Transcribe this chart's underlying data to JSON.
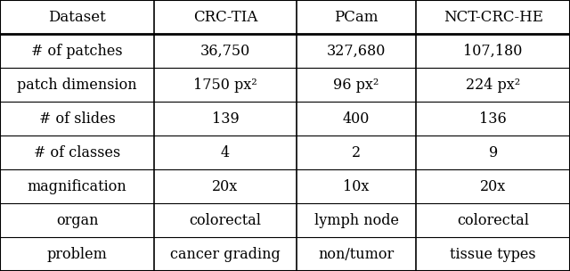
{
  "col_headers": [
    "Dataset",
    "CRC-TIA",
    "PCam",
    "NCT-CRC-HE"
  ],
  "row_labels": [
    "# of patches",
    "patch dimension",
    "# of slides",
    "# of classes",
    "magnification",
    "organ",
    "problem"
  ],
  "cell_data": [
    [
      "36,750",
      "327,680",
      "107,180"
    ],
    [
      "1750 px²",
      "96 px²",
      "224 px²"
    ],
    [
      "139",
      "400",
      "136"
    ],
    [
      "4",
      "2",
      "9"
    ],
    [
      "20x",
      "10x",
      "20x"
    ],
    [
      "colorectal",
      "lymph node",
      "colorectal"
    ],
    [
      "cancer grading",
      "non/tumor",
      "tissue types"
    ]
  ],
  "bg_color": "#ffffff",
  "text_color": "#000000",
  "border_color": "#000000",
  "font_size": 11.5,
  "header_font_size": 12
}
